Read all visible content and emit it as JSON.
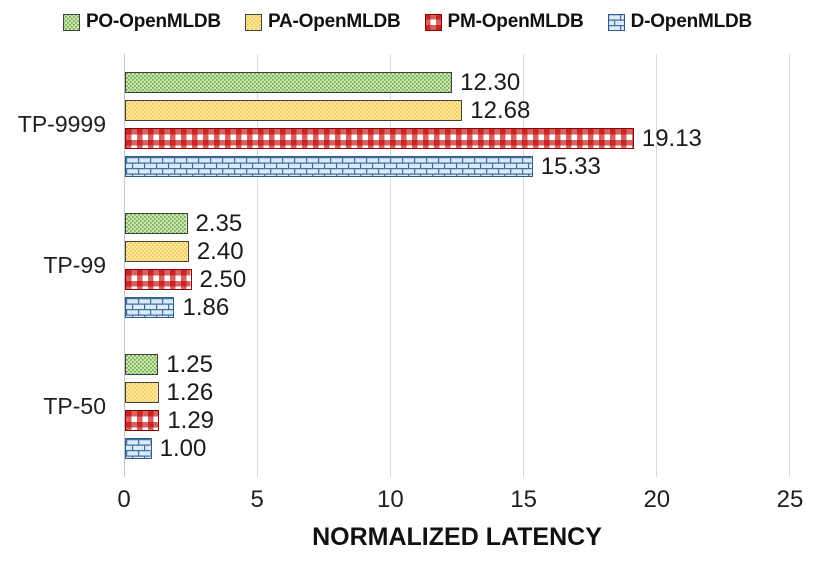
{
  "chart_data": {
    "type": "bar",
    "orientation": "horizontal",
    "title": "",
    "xlabel": "NORMALIZED LATENCY",
    "ylabel": "",
    "xlim": [
      0,
      25
    ],
    "xticks": [
      0,
      5,
      10,
      15,
      20,
      25
    ],
    "grid": true,
    "legend_position": "top",
    "value_label_decimals": 2,
    "categories": [
      "TP-9999",
      "TP-99",
      "TP-50"
    ],
    "series": [
      {
        "name": "PO-OpenMLDB",
        "pattern": "dots",
        "values": [
          12.3,
          2.35,
          1.25
        ],
        "pattern_bg": "#c9e5b4",
        "pattern_fg": "#71ad47",
        "border": "#404040"
      },
      {
        "name": "PA-OpenMLDB",
        "pattern": "dots",
        "values": [
          12.68,
          2.4,
          1.26
        ],
        "pattern_bg": "#ffe9a0",
        "pattern_fg": "#f0c64f",
        "border": "#404040"
      },
      {
        "name": "PM-OpenMLDB",
        "pattern": "gingham",
        "values": [
          19.13,
          2.5,
          1.29
        ],
        "pattern_bg": "#ffffff",
        "pattern_fg": "#c00000",
        "border": "#8b0000"
      },
      {
        "name": "D-OpenMLDB",
        "pattern": "brick",
        "values": [
          15.33,
          1.86,
          1.0
        ],
        "pattern_bg": "#dce9f6",
        "pattern_fg": "#41719c",
        "border": "#2e5b8f"
      }
    ],
    "colors": {
      "gridline": "#d9d9d9",
      "zero_axis": "#c3c3c3",
      "text": "#1a1a1a"
    }
  }
}
